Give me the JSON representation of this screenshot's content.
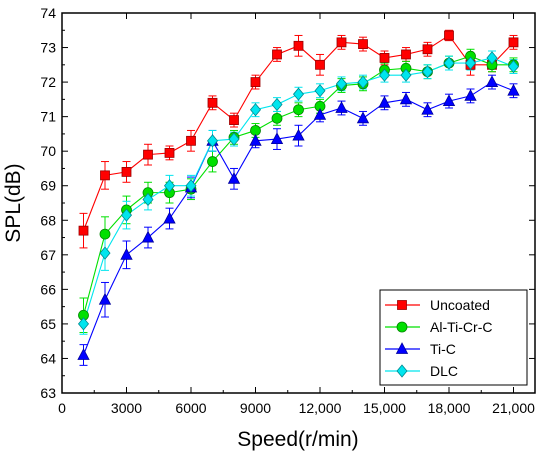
{
  "chart_data": {
    "type": "line",
    "xlabel": "Speed(r/min)",
    "ylabel": "SPL(dB)",
    "xlim": [
      0,
      22000
    ],
    "ylim": [
      63,
      74
    ],
    "x_ticks": [
      0,
      3000,
      6000,
      9000,
      12000,
      15000,
      18000,
      21000
    ],
    "x_tick_labels": [
      "0",
      "3000",
      "6000",
      "9000",
      "12,000",
      "15,000",
      "18,000",
      "21,000"
    ],
    "y_ticks": [
      63,
      64,
      65,
      66,
      67,
      68,
      69,
      70,
      71,
      72,
      73,
      74
    ],
    "y_tick_labels": [
      "63",
      "64",
      "65",
      "66",
      "67",
      "68",
      "69",
      "70",
      "71",
      "72",
      "73",
      "74"
    ],
    "legend_position": "bottom-right",
    "x": [
      1000,
      2000,
      3000,
      4000,
      5000,
      6000,
      7000,
      8000,
      9000,
      10000,
      11000,
      12000,
      13000,
      14000,
      15000,
      16000,
      17000,
      18000,
      19000,
      20000,
      21000
    ],
    "series": [
      {
        "name": "Uncoated",
        "color": "#ff0000",
        "marker": "square",
        "values": [
          67.7,
          69.3,
          69.4,
          69.9,
          69.95,
          70.3,
          71.4,
          70.9,
          72.0,
          72.8,
          73.05,
          72.5,
          73.15,
          73.1,
          72.7,
          72.8,
          72.95,
          73.35,
          72.5,
          72.5,
          73.15
        ],
        "errors": [
          0.5,
          0.4,
          0.3,
          0.3,
          0.2,
          0.3,
          0.2,
          0.2,
          0.2,
          0.2,
          0.3,
          0.3,
          0.2,
          0.2,
          0.2,
          0.2,
          0.2,
          0.15,
          0.3,
          0.2,
          0.2
        ]
      },
      {
        "name": "Al-Ti-Cr-C",
        "color": "#00e000",
        "marker": "circle",
        "values": [
          65.25,
          67.6,
          68.3,
          68.8,
          68.8,
          68.9,
          69.7,
          70.4,
          70.6,
          70.95,
          71.2,
          71.3,
          71.9,
          71.95,
          72.35,
          72.4,
          72.3,
          72.55,
          72.75,
          72.5,
          72.5
        ],
        "errors": [
          0.5,
          0.5,
          0.4,
          0.3,
          0.3,
          0.3,
          0.3,
          0.2,
          0.2,
          0.2,
          0.2,
          0.2,
          0.2,
          0.2,
          0.2,
          0.2,
          0.2,
          0.2,
          0.2,
          0.2,
          0.2
        ]
      },
      {
        "name": "Ti-C",
        "color": "#0000ff",
        "marker": "triangle",
        "values": [
          64.1,
          65.7,
          67.0,
          67.5,
          68.05,
          68.95,
          70.3,
          69.2,
          70.3,
          70.35,
          70.45,
          71.05,
          71.25,
          70.95,
          71.4,
          71.5,
          71.2,
          71.45,
          71.6,
          72.0,
          71.75
        ],
        "errors": [
          0.3,
          0.5,
          0.4,
          0.3,
          0.3,
          0.3,
          0.3,
          0.3,
          0.2,
          0.3,
          0.3,
          0.2,
          0.2,
          0.2,
          0.2,
          0.2,
          0.2,
          0.2,
          0.2,
          0.2,
          0.2
        ]
      },
      {
        "name": "DLC",
        "color": "#00e5ee",
        "marker": "diamond",
        "values": [
          65.0,
          67.05,
          68.15,
          68.6,
          69.0,
          69.0,
          70.3,
          70.35,
          71.2,
          71.35,
          71.65,
          71.75,
          71.95,
          72.0,
          72.2,
          72.2,
          72.3,
          72.55,
          72.55,
          72.7,
          72.45
        ],
        "errors": [
          0.3,
          0.5,
          0.4,
          0.3,
          0.3,
          0.3,
          0.3,
          0.2,
          0.2,
          0.2,
          0.2,
          0.2,
          0.2,
          0.2,
          0.2,
          0.2,
          0.2,
          0.2,
          0.2,
          0.2,
          0.2
        ]
      }
    ]
  }
}
